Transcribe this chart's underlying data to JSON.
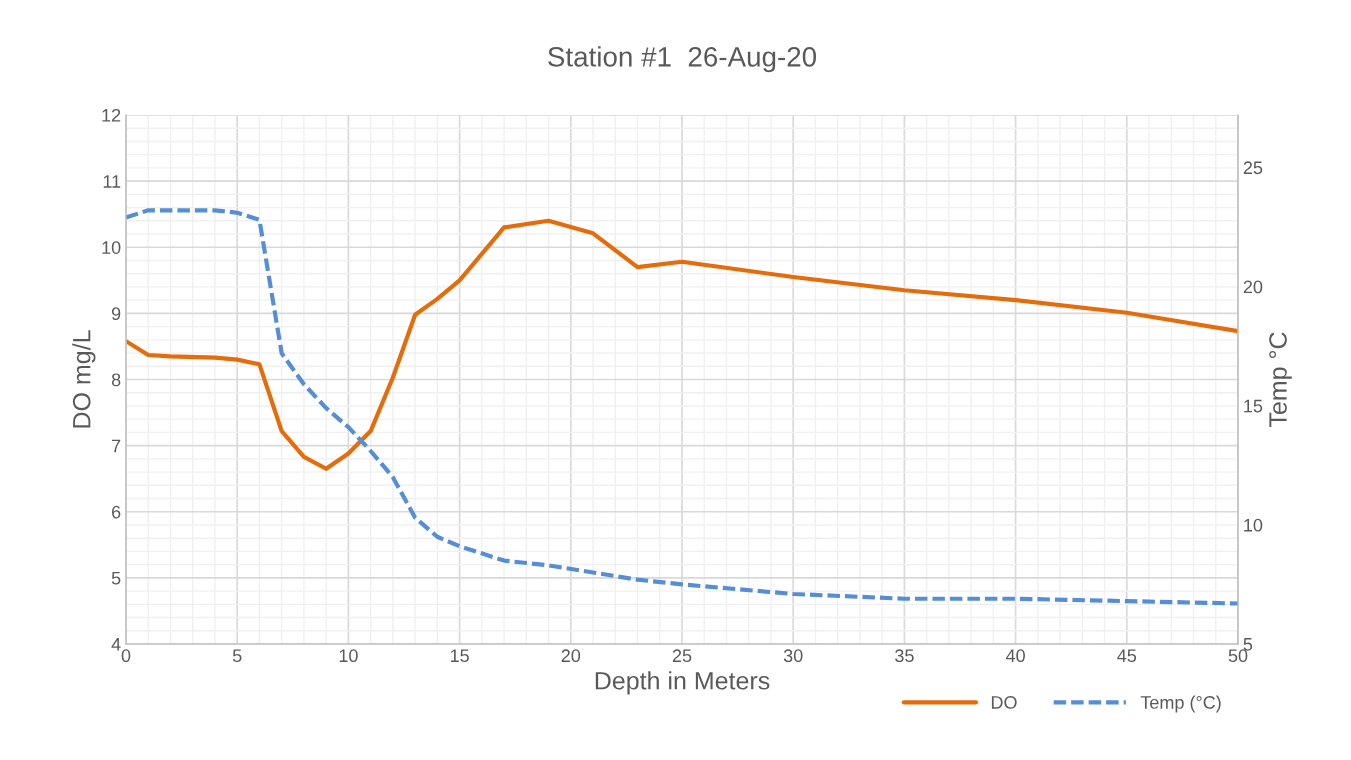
{
  "chart_data": {
    "type": "line",
    "title": "Station #1  26-Aug-20",
    "xlabel": "Depth in Meters",
    "ylabel": "DO mg/L",
    "y2label": "Temp °C",
    "xlim": [
      0,
      50
    ],
    "xticks": [
      0,
      5,
      10,
      15,
      20,
      25,
      30,
      35,
      40,
      45,
      50
    ],
    "ylim": [
      4,
      12
    ],
    "yticks": [
      4,
      5,
      6,
      7,
      8,
      9,
      10,
      11,
      12
    ],
    "y2lim": [
      5,
      27.2
    ],
    "y2ticks": [
      5,
      10,
      15,
      20,
      25
    ],
    "grid": true,
    "legend": "bottom right",
    "series": [
      {
        "name": "DO",
        "color": "#e46c0a",
        "line_style": "solid",
        "x": [
          0,
          1,
          2,
          4,
          5,
          6,
          7,
          8,
          9,
          10,
          11,
          12,
          13,
          14,
          15,
          17,
          19,
          21,
          23,
          25,
          30,
          35,
          40,
          45,
          50
        ],
        "values": [
          8.58,
          8.37,
          8.35,
          8.33,
          8.3,
          8.23,
          7.22,
          6.83,
          6.65,
          6.88,
          7.22,
          8.03,
          8.98,
          9.22,
          9.5,
          10.3,
          10.4,
          10.21,
          9.7,
          9.78,
          9.55,
          9.35,
          9.2,
          9.01,
          8.73
        ]
      },
      {
        "name": "Temp (°C)",
        "color": "#558ed5",
        "line_style": "dashed",
        "axis": "y2",
        "x": [
          0,
          1,
          2,
          4,
          5,
          6,
          7,
          8,
          9,
          10,
          11,
          12,
          13,
          14,
          15,
          17,
          19,
          21,
          23,
          25,
          30,
          35,
          40,
          45,
          50
        ],
        "values": [
          22.9,
          23.2,
          23.2,
          23.2,
          23.1,
          22.8,
          17.2,
          15.9,
          14.9,
          14.1,
          13.1,
          12.0,
          10.3,
          9.5,
          9.1,
          8.5,
          8.3,
          8.0,
          7.7,
          7.5,
          7.1,
          6.9,
          6.9,
          6.8,
          6.7
        ]
      }
    ]
  }
}
